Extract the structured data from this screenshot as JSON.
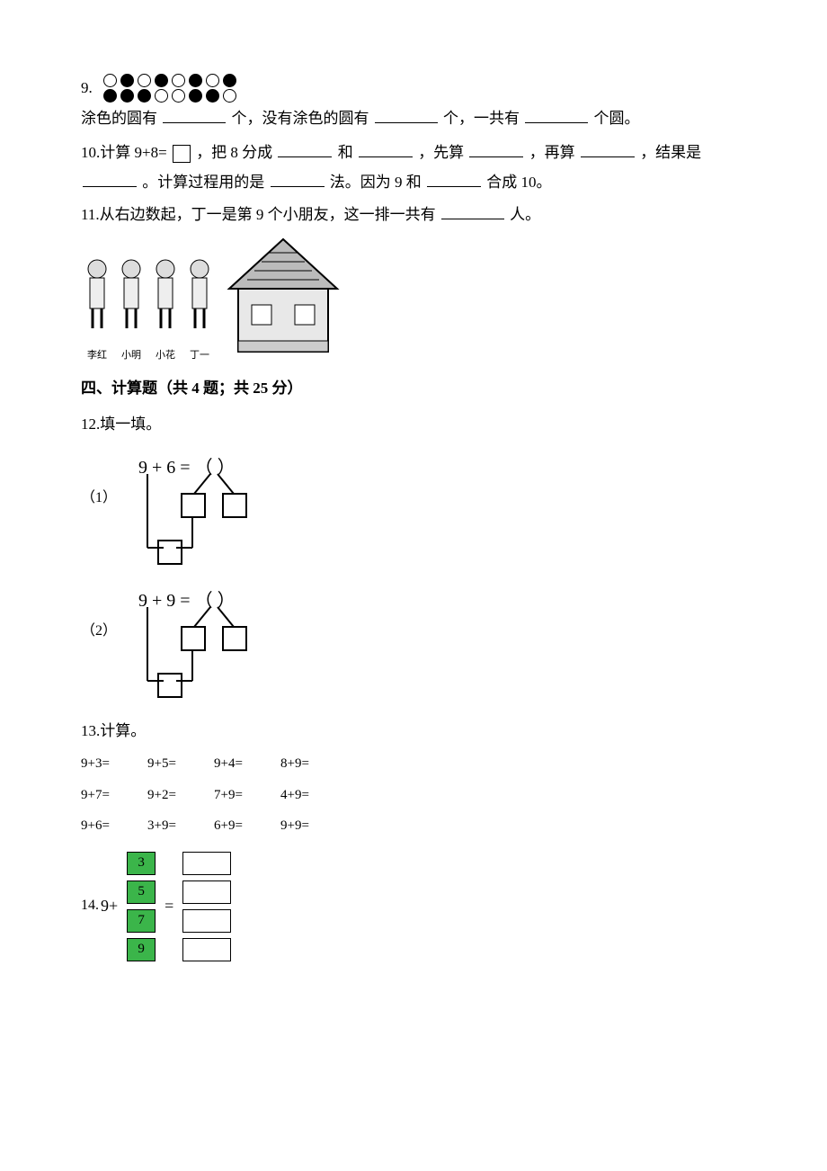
{
  "q9": {
    "number": "9.",
    "row1": [
      "o",
      "f",
      "o",
      "f",
      "o",
      "f",
      "o",
      "f"
    ],
    "row2": [
      "f",
      "f",
      "f",
      "o",
      "o",
      "f",
      "f",
      "o"
    ],
    "text_a": "涂色的圆有",
    "text_b": "个，没有涂色的圆有",
    "text_c": "个，一共有",
    "text_d": "个圆。"
  },
  "q10": {
    "prefix": "10.计算 9+8=",
    "seg1": "，把 8 分成",
    "and": "和",
    "seg2": "，先算",
    "seg3": "，再算",
    "seg4": "，结果是",
    "seg5": "。计算过程用的是",
    "seg6": "法。因为 9 和",
    "seg7": "合成 10。"
  },
  "q11": {
    "text_a": "11.从右边数起，丁一是第 9 个小朋友，这一排一共有",
    "text_b": "人。",
    "kids": [
      "李红",
      "小明",
      "小花",
      "丁一"
    ]
  },
  "section4": "四、计算题（共 4 题；共 25 分）",
  "q12": {
    "title": "12.填一填。",
    "sub1": "（1）",
    "sub2": "（2）",
    "expr1": "9  +  6  = （    ）",
    "expr2": "9  +  9  = （    ）"
  },
  "q13": {
    "title": "13.计算。",
    "rows": [
      [
        "9+3=",
        "9+5=",
        "9+4=",
        "8+9="
      ],
      [
        "9+7=",
        "9+2=",
        "7+9=",
        "4+9="
      ],
      [
        "9+6=",
        "3+9=",
        "6+9=",
        "9+9="
      ]
    ]
  },
  "q14": {
    "prefix_num": "14.",
    "base": "9+",
    "eq": "=",
    "left": [
      "3",
      "5",
      "7",
      "9"
    ]
  },
  "colors": {
    "green": "#3bb54a",
    "black": "#000000",
    "white": "#ffffff"
  }
}
